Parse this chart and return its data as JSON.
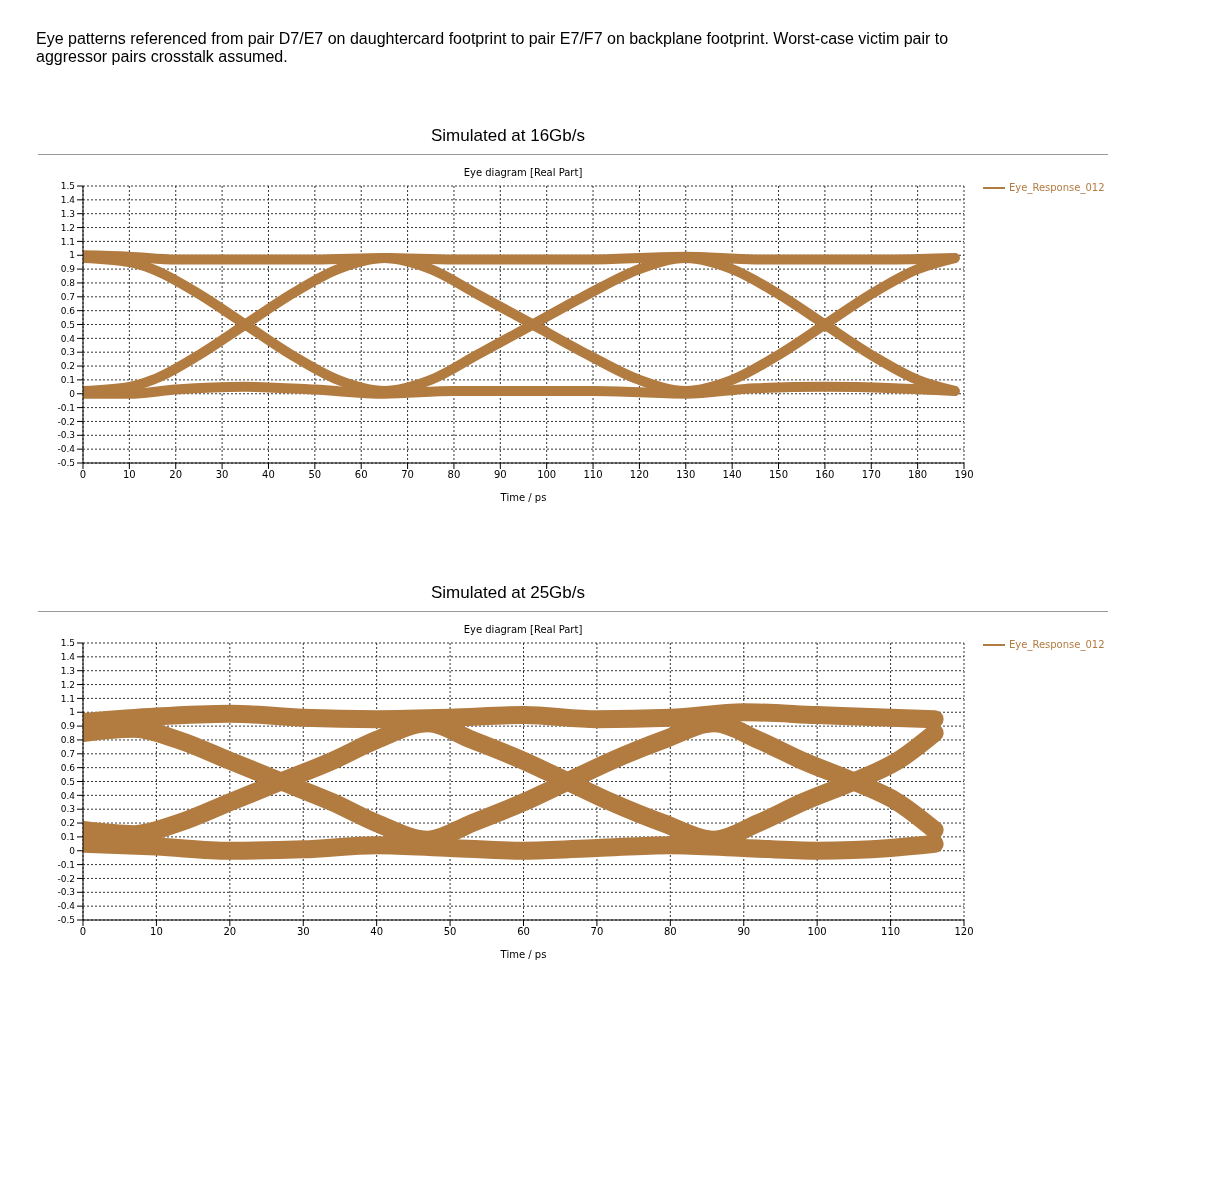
{
  "chart_data": [
    {
      "type": "line",
      "title": "Simulated at 16Gb/s",
      "subtitle": "Eye diagram [Real Part]",
      "xlabel": "Time / ps",
      "annotations": [
        "Eye patterns referenced from pair D7/E7 on daughtercard footprint to pair E7/F7 on backplane footprint. Worst-case victim pair to aggressor pairs crosstalk assumed."
      ],
      "xlim": [
        0,
        190
      ],
      "xticks": [
        0,
        10,
        20,
        30,
        40,
        50,
        60,
        70,
        80,
        90,
        100,
        110,
        120,
        130,
        140,
        150,
        160,
        170,
        180,
        190
      ],
      "ylim": [
        -0.5,
        1.5
      ],
      "yticks": [
        -0.5,
        -0.4,
        -0.3,
        -0.2,
        -0.1,
        0,
        0.1,
        0.2,
        0.3,
        0.4,
        0.5,
        0.6,
        0.7,
        0.8,
        0.9,
        1,
        1.1,
        1.2,
        1.3,
        1.4,
        1.5
      ],
      "grid": true,
      "legend": "top right",
      "line_style": "solid",
      "series": [
        {
          "name": "Eye_Response_012",
          "color": "#b27b40",
          "x": [
            0,
            10,
            20,
            35,
            50,
            65,
            80,
            97,
            110,
            130,
            145,
            160,
            175,
            188
          ],
          "values": [
            1,
            0.99,
            0.97,
            0.97,
            0.97,
            0.98,
            0.97,
            0.97,
            0.97,
            0.99,
            0.97,
            0.97,
            0.97,
            0.98
          ]
        },
        {
          "color": "#b27b40",
          "x": [
            0,
            10,
            20,
            35,
            50,
            65,
            80,
            97,
            110,
            130,
            145,
            160,
            175,
            188
          ],
          "values": [
            0,
            0,
            0.03,
            0.05,
            0.03,
            0,
            0.02,
            0.02,
            0.02,
            0,
            0.04,
            0.05,
            0.04,
            0.02
          ]
        },
        {
          "color": "#b27b40",
          "x": [
            0,
            10,
            15,
            25,
            35,
            45,
            55,
            65,
            75,
            85,
            97,
            109,
            120,
            130,
            140,
            150,
            160,
            170,
            180,
            188
          ],
          "values": [
            0.02,
            0.05,
            0.1,
            0.28,
            0.5,
            0.72,
            0.9,
            0.98,
            0.9,
            0.72,
            0.5,
            0.28,
            0.1,
            0.02,
            0.1,
            0.28,
            0.5,
            0.72,
            0.9,
            0.98
          ]
        },
        {
          "color": "#b27b40",
          "x": [
            0,
            10,
            15,
            25,
            35,
            45,
            55,
            65,
            75,
            85,
            97,
            109,
            120,
            130,
            140,
            150,
            160,
            170,
            180,
            188
          ],
          "values": [
            0.98,
            0.95,
            0.9,
            0.72,
            0.5,
            0.28,
            0.1,
            0.02,
            0.1,
            0.28,
            0.5,
            0.72,
            0.9,
            0.98,
            0.9,
            0.72,
            0.5,
            0.28,
            0.1,
            0.02
          ]
        }
      ]
    },
    {
      "type": "line",
      "title": "Simulated at 25Gb/s",
      "subtitle": "Eye diagram [Real Part]",
      "xlabel": "Time / ps",
      "xlim": [
        0,
        120
      ],
      "xticks": [
        0,
        10,
        20,
        30,
        40,
        50,
        60,
        70,
        80,
        90,
        100,
        110,
        120
      ],
      "ylim": [
        -0.5,
        1.5
      ],
      "yticks": [
        -0.5,
        -0.4,
        -0.3,
        -0.2,
        -0.1,
        0,
        0.1,
        0.2,
        0.3,
        0.4,
        0.5,
        0.6,
        0.7,
        0.8,
        0.9,
        1,
        1.1,
        1.2,
        1.3,
        1.4,
        1.5
      ],
      "grid": true,
      "legend": "top right",
      "line_style": "solid",
      "series": [
        {
          "name": "Eye_Response_012",
          "color": "#b27b40",
          "x": [
            0,
            10,
            20,
            30,
            40,
            50,
            60,
            70,
            80,
            90,
            100,
            110,
            116
          ],
          "values": [
            0.93,
            0.97,
            0.99,
            0.96,
            0.95,
            0.96,
            0.98,
            0.95,
            0.96,
            1,
            0.98,
            0.96,
            0.95
          ]
        },
        {
          "color": "#b27b40",
          "x": [
            0,
            10,
            20,
            30,
            40,
            50,
            60,
            70,
            80,
            90,
            100,
            110,
            116
          ],
          "values": [
            0.05,
            0.03,
            0,
            0.01,
            0.04,
            0.02,
            0,
            0.02,
            0.04,
            0.02,
            0,
            0.02,
            0.05
          ]
        },
        {
          "color": "#b27b40",
          "x": [
            0,
            7,
            13,
            20,
            27,
            34,
            40,
            47,
            53,
            60,
            66,
            72,
            79,
            86,
            92,
            98,
            105,
            111,
            116
          ],
          "values": [
            0.15,
            0.12,
            0.2,
            0.35,
            0.5,
            0.65,
            0.8,
            0.92,
            0.8,
            0.65,
            0.5,
            0.35,
            0.2,
            0.08,
            0.2,
            0.35,
            0.5,
            0.65,
            0.85
          ]
        },
        {
          "color": "#b27b40",
          "x": [
            0,
            7,
            13,
            20,
            27,
            34,
            40,
            47,
            53,
            60,
            66,
            72,
            79,
            86,
            92,
            98,
            105,
            111,
            116
          ],
          "values": [
            0.85,
            0.88,
            0.8,
            0.65,
            0.5,
            0.35,
            0.2,
            0.08,
            0.2,
            0.35,
            0.5,
            0.65,
            0.8,
            0.92,
            0.8,
            0.65,
            0.5,
            0.35,
            0.15
          ]
        }
      ]
    }
  ]
}
